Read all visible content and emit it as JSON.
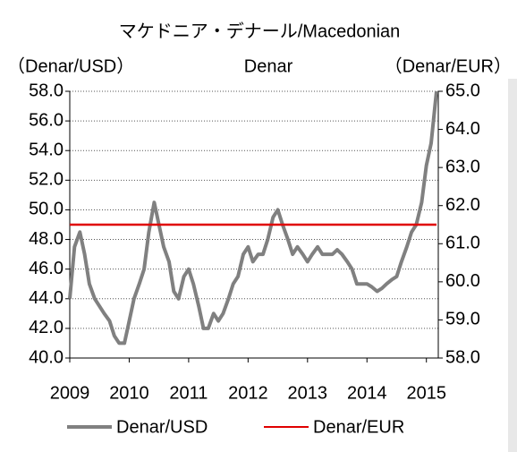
{
  "chart_data": {
    "type": "line",
    "title": "マケドニア・デナール/Macedonian",
    "subtitle": "Denar",
    "ylabel": "（Denar/USD）",
    "y2label": "（Denar/EUR）",
    "x": [
      2009.0,
      2009.08,
      2009.17,
      2009.25,
      2009.33,
      2009.42,
      2009.5,
      2009.58,
      2009.67,
      2009.75,
      2009.83,
      2009.92,
      2010.0,
      2010.08,
      2010.17,
      2010.25,
      2010.33,
      2010.42,
      2010.5,
      2010.58,
      2010.67,
      2010.75,
      2010.83,
      2010.92,
      2011.0,
      2011.08,
      2011.17,
      2011.25,
      2011.33,
      2011.42,
      2011.5,
      2011.58,
      2011.67,
      2011.75,
      2011.83,
      2011.92,
      2012.0,
      2012.08,
      2012.17,
      2012.25,
      2012.33,
      2012.42,
      2012.5,
      2012.58,
      2012.67,
      2012.75,
      2012.83,
      2012.92,
      2013.0,
      2013.08,
      2013.17,
      2013.25,
      2013.33,
      2013.42,
      2013.5,
      2013.58,
      2013.67,
      2013.75,
      2013.83,
      2013.92,
      2014.0,
      2014.08,
      2014.17,
      2014.25,
      2014.33,
      2014.42,
      2014.5,
      2014.58,
      2014.67,
      2014.75,
      2014.83,
      2014.92,
      2015.0,
      2015.08,
      2015.17
    ],
    "series": [
      {
        "name": "Denar/USD",
        "color": "#808080",
        "values": [
          44,
          47.5,
          48.5,
          47,
          45,
          44,
          43.5,
          43,
          42.5,
          41.5,
          41,
          41,
          42.5,
          44,
          45,
          46,
          48.5,
          50.5,
          49,
          47.5,
          46.5,
          44.5,
          44,
          45.5,
          46,
          45,
          43.5,
          42,
          42,
          43,
          42.5,
          43,
          44,
          45,
          45.5,
          47,
          47.5,
          46.5,
          47,
          47,
          48,
          49.5,
          50,
          49,
          48,
          47,
          47.5,
          47,
          46.5,
          47,
          47.5,
          47,
          47,
          47,
          47.3,
          47,
          46.5,
          46,
          45,
          45,
          45,
          44.8,
          44.5,
          44.7,
          45,
          45.3,
          45.5,
          46.5,
          47.5,
          48.5,
          49,
          50.5,
          53,
          54.5,
          58
        ]
      },
      {
        "name": "Denar/EUR",
        "color": "#e00000",
        "axis": "y2",
        "values": [
          61.5,
          61.5,
          61.5,
          61.5,
          61.5,
          61.5,
          61.5,
          61.5,
          61.5,
          61.5,
          61.5,
          61.5,
          61.5,
          61.5,
          61.5,
          61.5,
          61.5,
          61.5,
          61.5,
          61.5,
          61.5,
          61.5,
          61.5,
          61.5,
          61.5,
          61.5,
          61.5,
          61.5,
          61.5,
          61.5,
          61.5,
          61.5,
          61.5,
          61.5,
          61.5,
          61.5,
          61.5,
          61.5,
          61.5,
          61.5,
          61.5,
          61.5,
          61.5,
          61.5,
          61.5,
          61.5,
          61.5,
          61.5,
          61.5,
          61.5,
          61.5,
          61.5,
          61.5,
          61.5,
          61.5,
          61.5,
          61.5,
          61.5,
          61.5,
          61.5,
          61.5,
          61.5,
          61.5,
          61.5,
          61.5,
          61.5,
          61.5,
          61.5,
          61.5,
          61.5,
          61.5,
          61.5,
          61.5,
          61.5,
          61.5
        ]
      }
    ],
    "xlim": [
      2009,
      2015.2
    ],
    "xticks": [
      2009,
      2010,
      2011,
      2012,
      2013,
      2014,
      2015
    ],
    "ylim": [
      40,
      58
    ],
    "yticks": [
      {
        "value": 40,
        "label": "40.0"
      },
      {
        "value": 42,
        "label": "42.0"
      },
      {
        "value": 44,
        "label": "44.0"
      },
      {
        "value": 46,
        "label": "46.0"
      },
      {
        "value": 48,
        "label": "48.0"
      },
      {
        "value": 50,
        "label": "50.0"
      },
      {
        "value": 52,
        "label": "52.0"
      },
      {
        "value": 54,
        "label": "54.0"
      },
      {
        "value": 56,
        "label": "56.0"
      },
      {
        "value": 58,
        "label": "58.0"
      }
    ],
    "y2lim": [
      58,
      65
    ],
    "y2ticks": [
      {
        "value": 58,
        "label": "58.0"
      },
      {
        "value": 59,
        "label": "59.0"
      },
      {
        "value": 60,
        "label": "60.0"
      },
      {
        "value": 61,
        "label": "61.0"
      },
      {
        "value": 62,
        "label": "62.0"
      },
      {
        "value": 63,
        "label": "63.0"
      },
      {
        "value": 64,
        "label": "64.0"
      },
      {
        "value": 65,
        "label": "65.0"
      }
    ],
    "grid": true,
    "legend": "bottom"
  }
}
